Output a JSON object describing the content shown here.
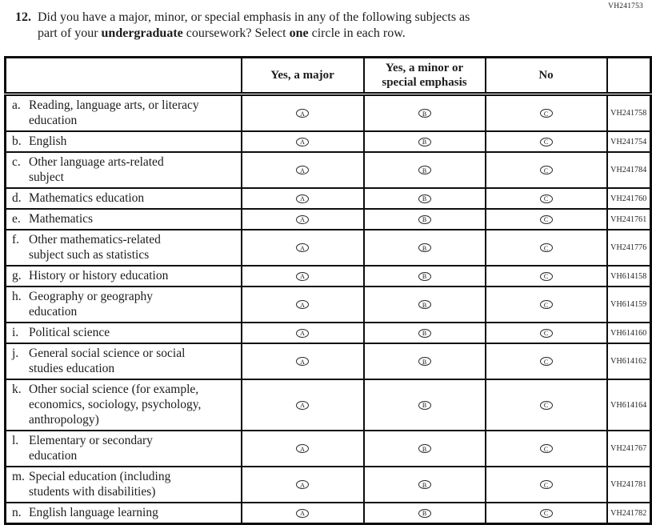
{
  "page_code": "VH241753",
  "question": {
    "number": "12.",
    "lines": [
      [
        {
          "text": "Did you have a major, minor, or special emphasis in any of the following subjects as"
        }
      ],
      [
        {
          "text": "part of your "
        },
        {
          "text": "undergraduate",
          "bold": true
        },
        {
          "text": " coursework? Select "
        },
        {
          "text": "one",
          "bold": true
        },
        {
          "text": " circle in each row."
        }
      ]
    ]
  },
  "table": {
    "headers": {
      "subject": "",
      "major": "Yes, a major",
      "minor": "Yes, a minor or\nspecial emphasis",
      "no": "No",
      "code": ""
    },
    "option_letters": [
      "A",
      "B",
      "C"
    ],
    "option_names": [
      "major",
      "minor",
      "no"
    ],
    "rows": [
      {
        "letter": "a.",
        "label": "Reading, language arts, or literacy\neducation",
        "code": "VH241758"
      },
      {
        "letter": "b.",
        "label": "English",
        "code": "VH241754"
      },
      {
        "letter": "c.",
        "label": "Other language arts-related\nsubject",
        "code": "VH241784"
      },
      {
        "letter": "d.",
        "label": "Mathematics education",
        "code": "VH241760"
      },
      {
        "letter": "e.",
        "label": "Mathematics",
        "code": "VH241761"
      },
      {
        "letter": "f.",
        "label": "Other mathematics-related\nsubject such as statistics",
        "code": "VH241776"
      },
      {
        "letter": "g.",
        "label": "History or history education",
        "code": "VH614158"
      },
      {
        "letter": "h.",
        "label": "Geography or geography\neducation",
        "code": "VH614159"
      },
      {
        "letter": "i.",
        "label": "Political science",
        "code": "VH614160"
      },
      {
        "letter": "j.",
        "label": "General social science or social\nstudies education",
        "code": "VH614162"
      },
      {
        "letter": "k.",
        "label": "Other social science (for example,\neconomics, sociology, psychology,\nanthropology)",
        "code": "VH614164"
      },
      {
        "letter": "l.",
        "label": "Elementary or secondary\neducation",
        "code": "VH241767"
      },
      {
        "letter": "m.",
        "label": "Special education (including\nstudents with disabilities)",
        "code": "VH241781"
      },
      {
        "letter": "n.",
        "label": "English language learning",
        "code": "VH241782"
      }
    ]
  }
}
